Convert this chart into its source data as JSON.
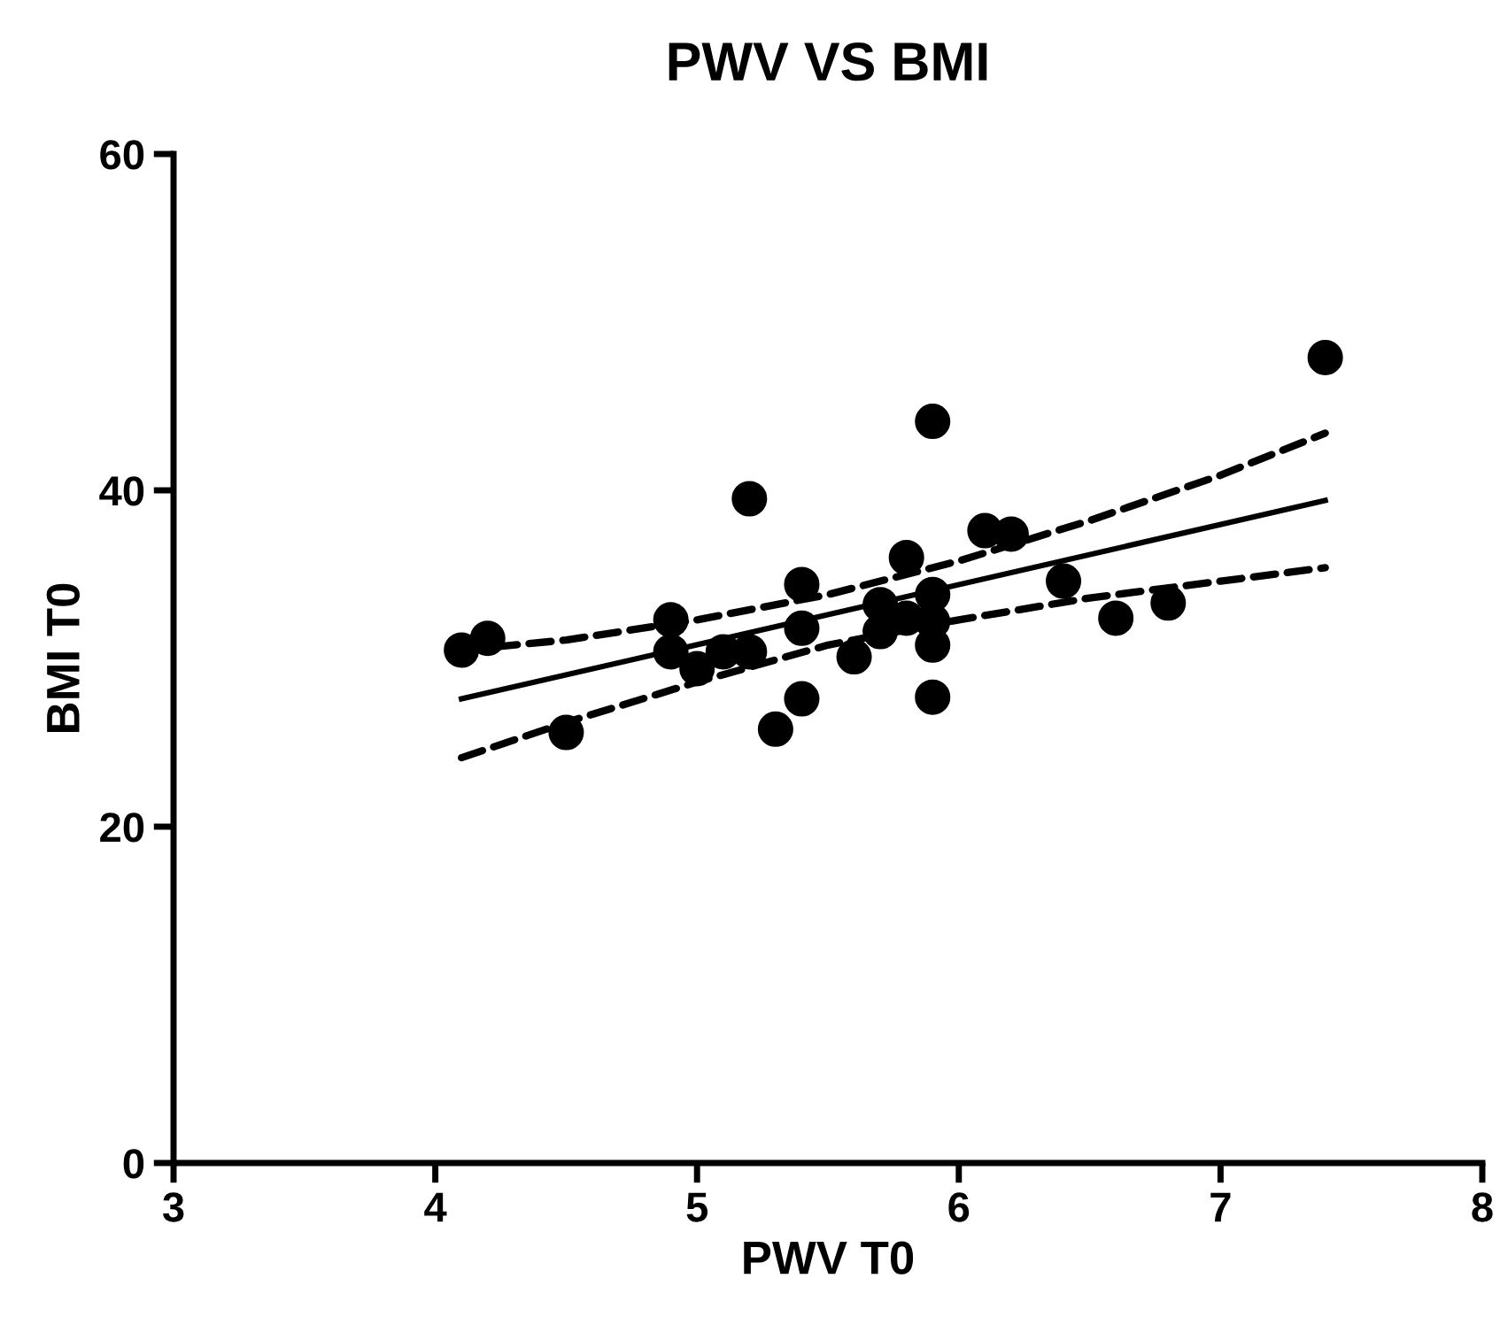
{
  "chart_data": {
    "type": "scatter",
    "title": "PWV VS BMI",
    "xlabel": "PWV T0",
    "ylabel": "BMI T0",
    "xlim": [
      3,
      8
    ],
    "xticks": [
      3,
      4,
      5,
      6,
      7,
      8
    ],
    "ylim": [
      0,
      60
    ],
    "yticks": [
      0,
      20,
      40,
      60
    ],
    "grid": false,
    "legend": false,
    "series": [
      {
        "color": "#000000",
        "marker": "circle",
        "x": [
          4.1,
          4.2,
          4.5,
          4.9,
          4.9,
          5.0,
          5.1,
          5.2,
          5.2,
          5.3,
          5.4,
          5.4,
          5.4,
          5.6,
          5.7,
          5.7,
          5.8,
          5.8,
          5.9,
          5.9,
          5.9,
          5.9,
          5.9,
          6.1,
          6.2,
          6.4,
          6.6,
          6.8,
          7.4
        ],
        "values": [
          30.5,
          31.2,
          25.6,
          32.3,
          30.4,
          29.4,
          30.4,
          30.4,
          39.5,
          25.8,
          34.4,
          31.8,
          27.6,
          30.1,
          33.2,
          31.6,
          36.0,
          32.4,
          44.1,
          33.8,
          32.2,
          30.8,
          27.7,
          37.6,
          37.4,
          34.6,
          32.4,
          33.3,
          47.9
        ]
      },
      {
        "type": "line",
        "color": "#000000",
        "line_style": "solid",
        "marker": "none",
        "x": [
          4.1,
          7.4
        ],
        "values": [
          27.6,
          39.4
        ]
      },
      {
        "type": "line",
        "color": "#000000",
        "line_style": "dashed",
        "marker": "none",
        "x": [
          4.1,
          4.5,
          5.0,
          5.5,
          6.0,
          6.5,
          7.0,
          7.4
        ],
        "values": [
          30.5,
          31.1,
          32.3,
          33.8,
          35.8,
          38.2,
          40.9,
          43.4
        ]
      },
      {
        "type": "line",
        "color": "#000000",
        "line_style": "dashed",
        "marker": "none",
        "x": [
          4.1,
          4.5,
          5.0,
          5.5,
          6.0,
          6.5,
          7.0,
          7.4
        ],
        "values": [
          24.1,
          26.2,
          28.6,
          30.8,
          32.3,
          33.6,
          34.6,
          35.4
        ]
      }
    ]
  }
}
